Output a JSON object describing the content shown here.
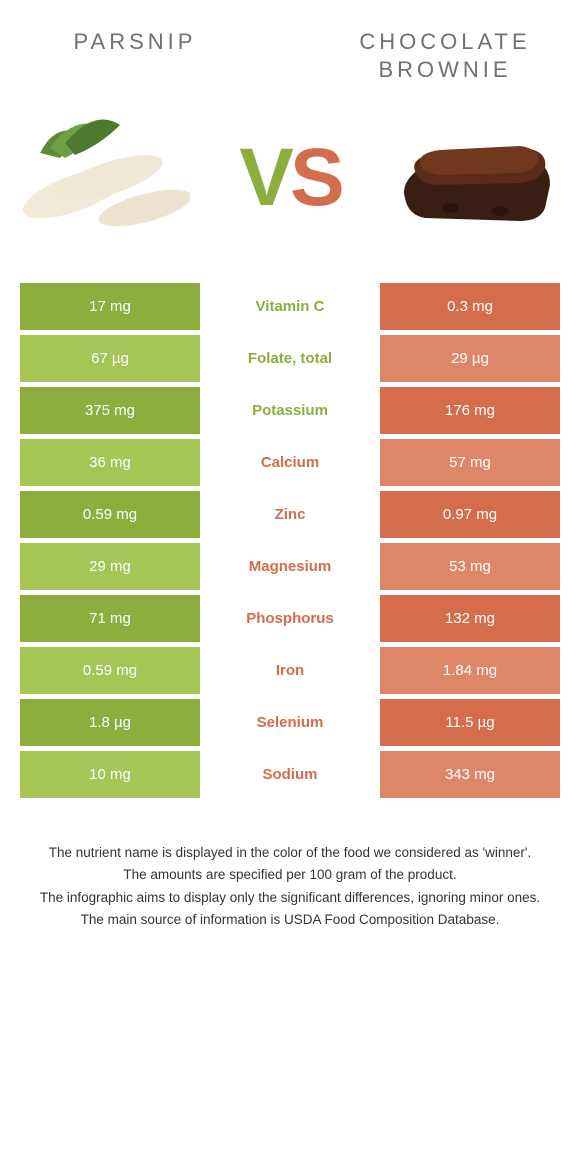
{
  "colors": {
    "green_dark": "#8dae3e",
    "green_light": "#a5c556",
    "orange_dark": "#d36d4b",
    "orange_light": "#dd8668",
    "title_grey": "#707070",
    "footnote": "#333333",
    "background": "#ffffff"
  },
  "header": {
    "left_title": "PARSNIP",
    "right_title": "CHOCOLATE BROWNIE",
    "vs_v": "V",
    "vs_s": "S"
  },
  "icons": {
    "left": "parsnip",
    "right": "chocolate-brownie"
  },
  "table": {
    "rows": [
      {
        "left": "17 mg",
        "name": "Vitamin C",
        "right": "0.3 mg",
        "winner": "left"
      },
      {
        "left": "67 µg",
        "name": "Folate, total",
        "right": "29 µg",
        "winner": "left"
      },
      {
        "left": "375 mg",
        "name": "Potassium",
        "right": "176 mg",
        "winner": "left"
      },
      {
        "left": "36 mg",
        "name": "Calcium",
        "right": "57 mg",
        "winner": "right"
      },
      {
        "left": "0.59 mg",
        "name": "Zinc",
        "right": "0.97 mg",
        "winner": "right"
      },
      {
        "left": "29 mg",
        "name": "Magnesium",
        "right": "53 mg",
        "winner": "right"
      },
      {
        "left": "71 mg",
        "name": "Phosphorus",
        "right": "132 mg",
        "winner": "right"
      },
      {
        "left": "0.59 mg",
        "name": "Iron",
        "right": "1.84 mg",
        "winner": "right"
      },
      {
        "left": "1.8 µg",
        "name": "Selenium",
        "right": "11.5 µg",
        "winner": "right"
      },
      {
        "left": "10 mg",
        "name": "Sodium",
        "right": "343 mg",
        "winner": "right"
      }
    ]
  },
  "footnotes": [
    "The nutrient name is displayed in the color of the food we considered as 'winner'.",
    "The amounts are specified per 100 gram of the product.",
    "The infographic aims to display only the significant differences, ignoring minor ones.",
    "The main source of information is USDA Food Composition Database."
  ]
}
